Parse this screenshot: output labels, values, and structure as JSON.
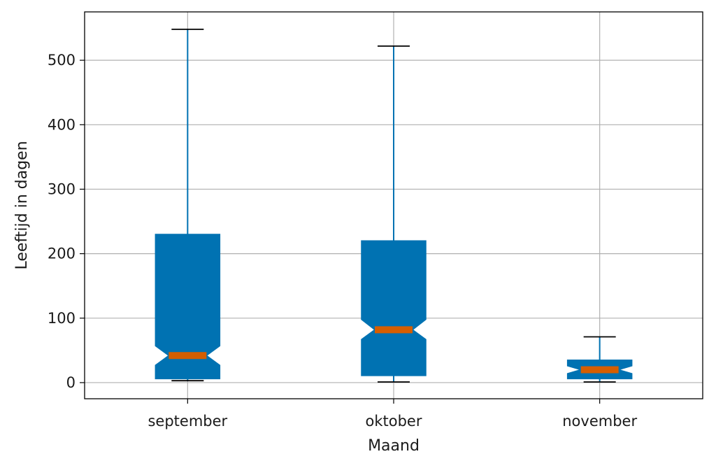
{
  "chart_data": {
    "type": "boxplot",
    "notched": true,
    "grid": true,
    "xlabel": "Maand",
    "ylabel": "Leeftijd in dagen",
    "ylim": [
      -25,
      575
    ],
    "yticks": [
      0,
      100,
      200,
      300,
      400,
      500
    ],
    "categories": [
      "september",
      "oktober",
      "november"
    ],
    "boxes": [
      {
        "category": "september",
        "whisker_low": 3,
        "q1": 6,
        "median": 42,
        "q3": 230,
        "whisker_high": 548,
        "notch_low": 27,
        "notch_high": 57
      },
      {
        "category": "oktober",
        "whisker_low": 1,
        "q1": 11,
        "median": 82,
        "q3": 220,
        "whisker_high": 522,
        "notch_low": 67,
        "notch_high": 98
      },
      {
        "category": "november",
        "whisker_low": 1,
        "q1": 6,
        "median": 20,
        "q3": 35,
        "whisker_high": 71,
        "notch_low": 14,
        "notch_high": 26
      }
    ],
    "colors": {
      "box": "#0072b2",
      "median": "#d55e00",
      "whisker": "#0072b2",
      "cap": "#000000",
      "grid": "#b0b0b0",
      "frame": "#000000"
    }
  }
}
